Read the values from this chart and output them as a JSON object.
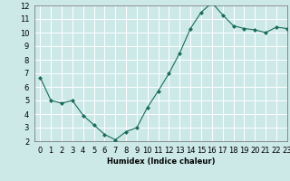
{
  "x": [
    0,
    1,
    2,
    3,
    4,
    5,
    6,
    7,
    8,
    9,
    10,
    11,
    12,
    13,
    14,
    15,
    16,
    17,
    18,
    19,
    20,
    21,
    22,
    23
  ],
  "y": [
    6.7,
    5.0,
    4.8,
    5.0,
    3.9,
    3.2,
    2.5,
    2.1,
    2.7,
    3.0,
    4.5,
    5.7,
    7.0,
    8.5,
    10.3,
    11.5,
    12.2,
    11.3,
    10.5,
    10.3,
    10.2,
    10.0,
    10.4,
    10.3
  ],
  "line_color": "#1a6b5a",
  "bg_color": "#cce9e8",
  "grid_color_major": "#ffffff",
  "grid_color_minor": "#dde8e8",
  "xlabel": "Humidex (Indice chaleur)",
  "ylim": [
    2,
    12
  ],
  "xlim": [
    -0.5,
    23
  ],
  "yticks": [
    2,
    3,
    4,
    5,
    6,
    7,
    8,
    9,
    10,
    11,
    12
  ],
  "xticks": [
    0,
    1,
    2,
    3,
    4,
    5,
    6,
    7,
    8,
    9,
    10,
    11,
    12,
    13,
    14,
    15,
    16,
    17,
    18,
    19,
    20,
    21,
    22,
    23
  ],
  "label_fontsize": 6,
  "tick_fontsize": 6,
  "marker": "D",
  "marker_size": 2.0,
  "line_width": 0.8,
  "spine_color": "#666666"
}
